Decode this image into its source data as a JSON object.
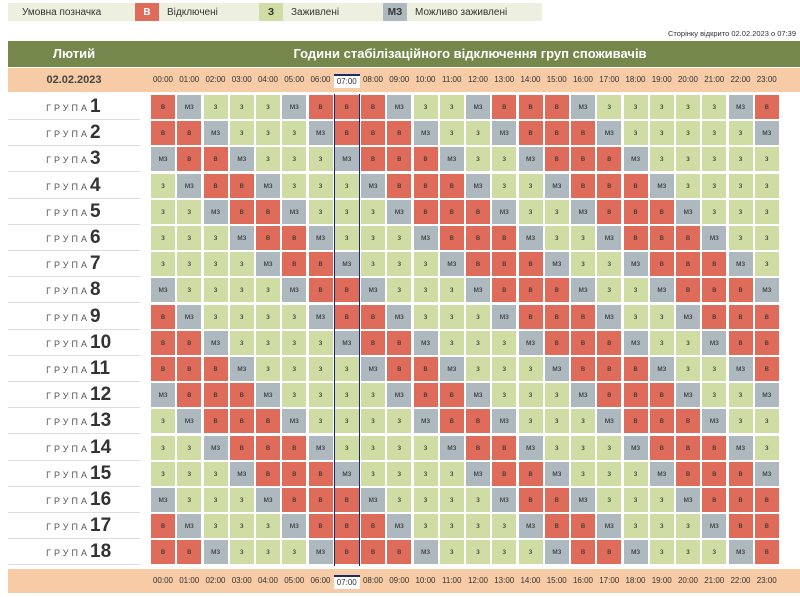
{
  "legend": {
    "title": "Умовна позначка",
    "items": [
      {
        "code": "В",
        "label": "Відключені"
      },
      {
        "code": "З",
        "label": "Заживлені"
      },
      {
        "code": "МЗ",
        "label": "Можливо заживлені"
      }
    ]
  },
  "opened_text": "Сторінку відкрито 02.02.2023 о 07:39",
  "header": {
    "month": "Лютий",
    "title": "Години стабілізаційного відключення груп споживачів"
  },
  "date": "02.02.2023",
  "current_hour_index": 7,
  "hours": [
    "00:00",
    "01:00",
    "02:00",
    "03:00",
    "04:00",
    "05:00",
    "06:00",
    "07:00",
    "08:00",
    "09:00",
    "10:00",
    "11:00",
    "12:00",
    "13:00",
    "14:00",
    "15:00",
    "16:00",
    "17:00",
    "18:00",
    "19:00",
    "20:00",
    "21:00",
    "22:00",
    "23:00"
  ],
  "group_word": "ГРУПА",
  "status_labels": {
    "B": "в",
    "Z": "з",
    "M": "мз"
  },
  "colors": {
    "B": "#df6b5b",
    "Z": "#cfdda4",
    "M": "#aeb9bf",
    "header": "#75874a",
    "hours_bar": "#f6cba5"
  },
  "groups": [
    {
      "num": "1",
      "cells": "BMZZZMBBBMZZMBBBMZZZZZMB"
    },
    {
      "num": "2",
      "cells": "BBMZZZMBBBMZZMBBBMZZZZZM"
    },
    {
      "num": "3",
      "cells": "MBBMZZZMBBBMZZMBBBMZZZZZ"
    },
    {
      "num": "4",
      "cells": "ZMBBMZZZMBBBMZZMBBBMZZZZ"
    },
    {
      "num": "5",
      "cells": "ZZMBBMZZZMBBBMZZMBBBMZZZ"
    },
    {
      "num": "6",
      "cells": "ZZZMBBMZZZMBBBMZZMBBBMZZ"
    },
    {
      "num": "7",
      "cells": "ZZZZMBBMZZZMBBBMZZMBBBMZ"
    },
    {
      "num": "8",
      "cells": "MZZZZMBBMZZZMBBBMZZMBBBM"
    },
    {
      "num": "9",
      "cells": "BMZZZZMBBMZZZMBBBMZZMBBB"
    },
    {
      "num": "10",
      "cells": "BBMZZZZMBBMZZZMBBBMZZMBB"
    },
    {
      "num": "11",
      "cells": "BBBMZZZZMBBMZZZMBBBMZZMB"
    },
    {
      "num": "12",
      "cells": "MBBBMZZZZMBBMZZZMBBBMZZM"
    },
    {
      "num": "13",
      "cells": "ZMBBBMZZZZMBBMZZZMBBBMZZ"
    },
    {
      "num": "14",
      "cells": "ZZMBBBMZZZZMBBMZZZMBBBMZ"
    },
    {
      "num": "15",
      "cells": "ZZZMBBBMZZZZMBBMZZZMBBBM"
    },
    {
      "num": "16",
      "cells": "MZZZMBBBMZZZZMBBMZZZMBBB"
    },
    {
      "num": "17",
      "cells": "BMZZZMBBBMZZZZMBBMZZZMBB"
    },
    {
      "num": "18",
      "cells": "BBMZZZMBBBMZZZZMBBMZZZMB"
    }
  ]
}
